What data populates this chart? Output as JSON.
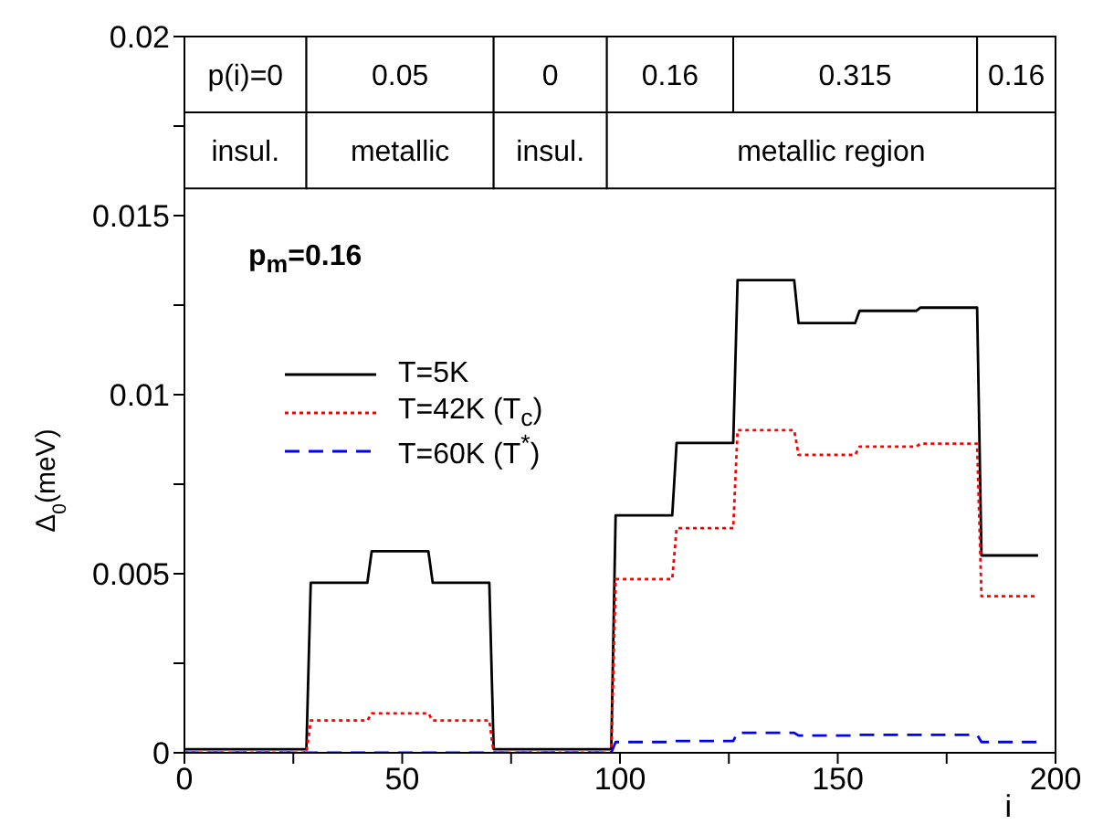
{
  "chart_data": {
    "type": "line",
    "xlabel": "i",
    "ylabel": "Δ$_{0}$(meV)",
    "x": [
      0,
      28,
      29,
      42,
      43,
      56,
      57,
      70,
      71,
      98,
      99,
      112,
      113,
      126,
      127,
      140,
      141,
      154,
      155,
      168,
      169,
      182,
      183,
      196
    ],
    "series": [
      {
        "name": "T=5K",
        "color": "#000000",
        "line_style": "solid",
        "values": [
          0.0001,
          0.0001,
          0.00475,
          0.00475,
          0.00563,
          0.00563,
          0.00475,
          0.00475,
          0.0001,
          0.0001,
          0.00663,
          0.00663,
          0.00865,
          0.00865,
          0.0132,
          0.0132,
          0.012,
          0.012,
          0.01234,
          0.01234,
          0.01243,
          0.01243,
          0.00551,
          0.00551
        ]
      },
      {
        "name": "T=42K (T$_{c}$)",
        "color": "#ff0000",
        "line_style": "dotted",
        "values": [
          0,
          0,
          0.0009,
          0.0009,
          0.0011,
          0.0011,
          0.0009,
          0.0009,
          0,
          0,
          0.00485,
          0.00485,
          0.00627,
          0.00627,
          0.00901,
          0.00901,
          0.00832,
          0.00832,
          0.00855,
          0.00855,
          0.00863,
          0.00863,
          0.00437,
          0.00437
        ]
      },
      {
        "name": "T=60K (T$^{*}$)",
        "color": "#0000ff",
        "line_style": "dashed",
        "values": [
          0,
          0,
          0,
          0,
          0,
          0,
          0,
          0,
          0,
          0,
          0.0003,
          0.0003,
          0.00033,
          0.00033,
          0.00056,
          0.00056,
          0.00048,
          0.00048,
          0.0005,
          0.0005,
          0.0005,
          0.0005,
          0.0003,
          0.0003
        ]
      }
    ],
    "xlim": [
      0,
      200
    ],
    "xticks": [
      0,
      {
        "value": 25,
        "label": null
      },
      50,
      {
        "value": 75,
        "label": null
      },
      100,
      {
        "value": 125,
        "label": null
      },
      150,
      {
        "value": 175,
        "label": null
      },
      200
    ],
    "ylim": [
      0,
      0.02
    ],
    "yticks": [
      0,
      {
        "value": 0.0025,
        "label": null
      },
      0.005,
      {
        "value": 0.0075,
        "label": null
      },
      0.01,
      {
        "value": 0.0125,
        "label": null
      },
      0.015,
      {
        "value": 0.0175,
        "label": null
      },
      0.02
    ],
    "bands": [
      {
        "axis": "x",
        "from": 0,
        "to": 28,
        "label": "p(i)=0",
        "color": "#ffffff"
      },
      {
        "axis": "x",
        "from": 28,
        "to": 71,
        "label": "0.05",
        "color": "#ffffff"
      },
      {
        "axis": "x",
        "from": 71,
        "to": 97,
        "label": "0",
        "color": "#ffffff"
      },
      {
        "axis": "x",
        "from": 97,
        "to": 126,
        "label": "0.16",
        "color": "#ffffff"
      },
      {
        "axis": "x",
        "from": 126,
        "to": 182,
        "label": "0.315",
        "color": "#ffffff"
      },
      {
        "axis": "x",
        "from": 182,
        "to": 200,
        "label": "0.16",
        "color": "#ffffff"
      },
      {
        "axis": "x",
        "from": 0,
        "to": 28,
        "label": "insul.",
        "color": "#ffffff"
      },
      {
        "axis": "x",
        "from": 28,
        "to": 71,
        "label": "metallic",
        "color": "#ffffff"
      },
      {
        "axis": "x",
        "from": 71,
        "to": 97,
        "label": "insul.",
        "color": "#ffffff"
      },
      {
        "axis": "x",
        "from": 97,
        "to": 200,
        "label": "metallic region",
        "color": "#ffffff"
      }
    ],
    "annotations": [
      "p$_{m}$=0.16"
    ],
    "legend": "left"
  }
}
